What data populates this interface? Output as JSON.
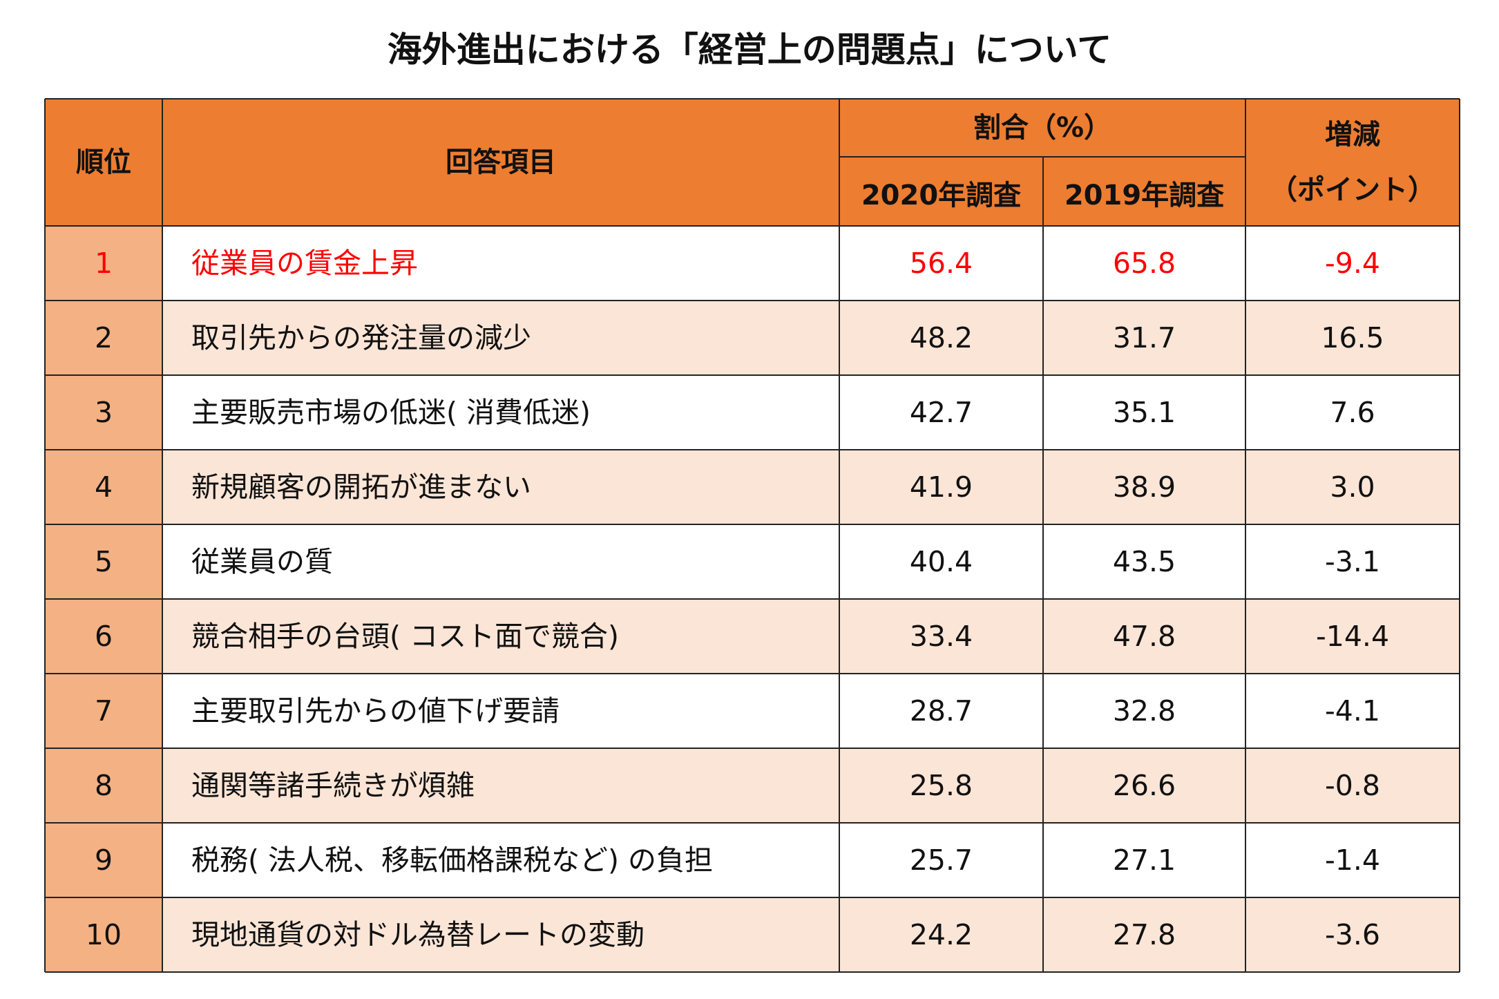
{
  "header": {
    "title": "海外進出における「経営上の問題点」について"
  },
  "table": {
    "columns": {
      "rank": "順位",
      "item": "回答項目",
      "ratio": "割合（%）",
      "y2020": "2020年調査",
      "y2019": "2019年調査",
      "change": "増減",
      "change_unit": "（ポイント）"
    },
    "rows": [
      [
        "1",
        "従業員の賃金上昇",
        "56.4",
        "65.8",
        "-9.4"
      ],
      [
        "2",
        "取引先からの発注量の減少",
        "48.2",
        "31.7",
        "16.5"
      ],
      [
        "3",
        "主要販売市場の低迷( 消費低迷)",
        "42.7",
        "35.1",
        "7.6"
      ],
      [
        "4",
        "新規顧客の開拓が進まない",
        "41.9",
        "38.9",
        "3.0"
      ],
      [
        "5",
        "従業員の質",
        "40.4",
        "43.5",
        "-3.1"
      ],
      [
        "6",
        "競合相手の台頭( コスト面で競合)",
        "33.4",
        "47.8",
        "-14.4"
      ],
      [
        "7",
        "主要取引先からの値下げ要請",
        "28.7",
        "32.8",
        "-4.1"
      ],
      [
        "8",
        "通関等諸手続きが煩雑",
        "25.8",
        "26.6",
        "-0.8"
      ],
      [
        "9",
        "税務( 法人税、移転価格課税など) の負担",
        "25.7",
        "27.1",
        "-1.4"
      ],
      [
        "10",
        "現地通貨の対ドル為替レートの変動",
        "24.2",
        "27.8",
        "-3.6"
      ]
    ]
  }
}
